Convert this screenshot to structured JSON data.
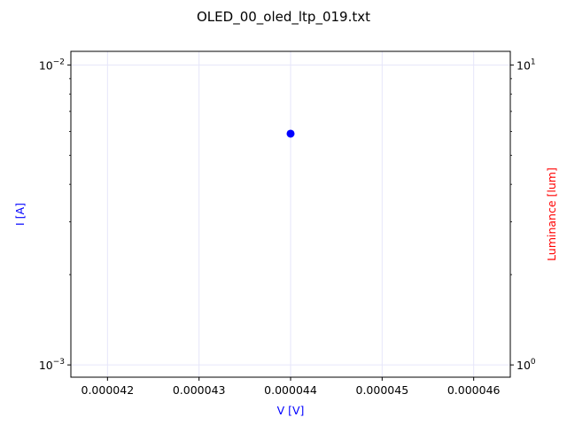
{
  "chart_data": {
    "type": "scatter",
    "title": "OLED_00_oled_ltp_019.txt",
    "xlabel": "V [V]",
    "ylabel_left": "I [A]",
    "ylabel_right": "Luminance [lum]",
    "x_scale": "linear",
    "y_left_scale": "log",
    "y_right_scale": "log",
    "xlim": [
      4.16e-05,
      4.64e-05
    ],
    "y_left_lim": [
      0.00091,
      0.0111
    ],
    "y_right_lim": [
      0.91,
      11.1
    ],
    "x_ticks": [
      {
        "value": 4.2e-05,
        "label": "0.000042"
      },
      {
        "value": 4.3e-05,
        "label": "0.000043"
      },
      {
        "value": 4.4e-05,
        "label": "0.000044"
      },
      {
        "value": 4.5e-05,
        "label": "0.000045"
      },
      {
        "value": 4.6e-05,
        "label": "0.000046"
      }
    ],
    "y_left_major_ticks": [
      {
        "value": 0.001,
        "base": "10",
        "exp": "−3"
      },
      {
        "value": 0.01,
        "base": "10",
        "exp": "−2"
      }
    ],
    "y_right_major_ticks": [
      {
        "value": 1,
        "base": "10",
        "exp": "0"
      },
      {
        "value": 10,
        "base": "10",
        "exp": "1"
      }
    ],
    "grid": true,
    "series": [
      {
        "axis": "left",
        "color": "#0000ff",
        "x": [
          4.4e-05
        ],
        "y": [
          0.0059
        ]
      }
    ],
    "colors": {
      "left_axis_label": "#0000ff",
      "right_axis_label": "#ff0000",
      "x_axis_label": "#0000ff",
      "grid": "#e6e6fa"
    }
  }
}
